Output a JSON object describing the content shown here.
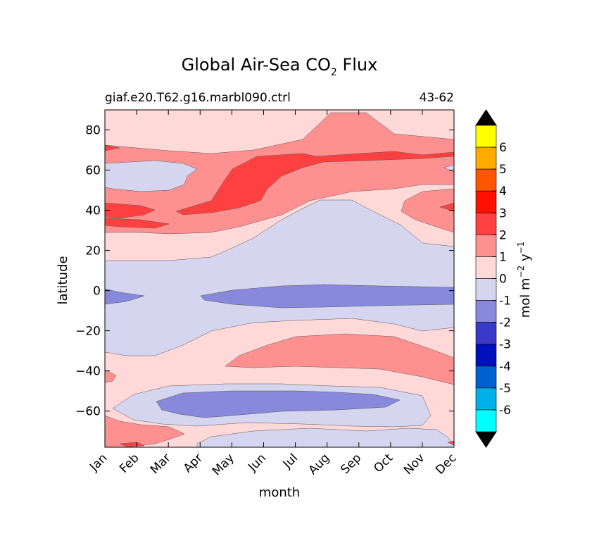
{
  "chart_data": {
    "type": "heatmap",
    "title_main": "Global Air-Sea CO",
    "title_sub": "2",
    "title_end": "Flux",
    "subtitle_left": "giaf.e20.T62.g16.marbl090.ctrl",
    "subtitle_right": "43-62",
    "xlabel": "month",
    "ylabel": "latitude",
    "x_categories": [
      "Jan",
      "Feb",
      "Mar",
      "Apr",
      "May",
      "Jun",
      "Jul",
      "Aug",
      "Sep",
      "Oct",
      "Nov",
      "Dec"
    ],
    "y_ticks": [
      80,
      60,
      40,
      20,
      0,
      -20,
      -40,
      -60
    ],
    "y_tick_labels": [
      "80",
      "60",
      "40",
      "20",
      "0",
      "−20",
      "−40",
      "−60"
    ],
    "ylim": [
      -78,
      90
    ],
    "colorbar": {
      "label_main": "mol m",
      "label_exp1": "−2",
      "label_mid": " y",
      "label_exp2": "−1",
      "levels": [
        "6",
        "5",
        "4",
        "3",
        "2",
        "1",
        "0",
        "-1",
        "-2",
        "-3",
        "-4",
        "-5",
        "-6"
      ],
      "colors": [
        "#ffff00",
        "#ffaa00",
        "#ff5500",
        "#ff1100",
        "#ff4040",
        "#ff9090",
        "#ffd8d8",
        "#d5d5f0",
        "#8888dd",
        "#3a3ac8",
        "#0010bb",
        "#0060d0",
        "#00b0e8",
        "#00ffff"
      ],
      "extend_color": "#000000"
    },
    "value_bands": [
      {
        "range": "-2 to -1",
        "color": "#8888dd",
        "regions": [
          "equator 0 to -5 (Jan-Dec, strongest Jul-Dec)",
          "-50 to -60 (Mar-Oct)"
        ]
      },
      {
        "range": "-1 to 0",
        "color": "#d5d5f0",
        "regions": [
          "tropics 15 to -30",
          "subtropics Jun-Oct up to 45",
          "-60 to -75 (Apr-Nov)",
          "55 to 65 (Jan-Mar)"
        ]
      },
      {
        "range": "0 to 1",
        "color": "#ffd8d8",
        "regions": [
          "high latitudes 75-90",
          "mid latitudes 20-30 and -30 to -45"
        ]
      },
      {
        "range": "1 to 2",
        "color": "#ff9090",
        "regions": [
          "40-70 N",
          "-25 to -45 (May-Dec)",
          "Antarctic margin Jan-Feb"
        ]
      },
      {
        "range": "2 to 3",
        "color": "#ff4040",
        "regions": [
          "40-65 N (Apr-Dec)",
          "35-40 N (Jan-Mar)"
        ]
      }
    ]
  }
}
